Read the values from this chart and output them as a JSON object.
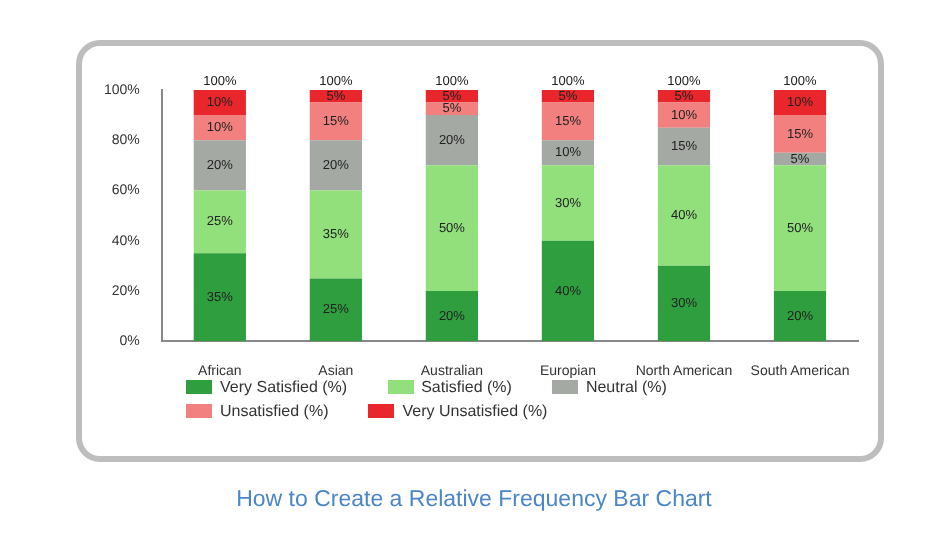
{
  "chart_data": {
    "type": "bar",
    "stacked": true,
    "categories": [
      "African",
      "Asian",
      "Australian",
      "Europian",
      "North American",
      "South American"
    ],
    "series": [
      {
        "name": "Very Satisfied (%)",
        "color": "#2f9e3f",
        "values": [
          35,
          25,
          20,
          40,
          30,
          20
        ],
        "value_labels": [
          "35%",
          "25%",
          "20%",
          "40%",
          "30%",
          "20%"
        ]
      },
      {
        "name": "Satisfied (%)",
        "color": "#92e07c",
        "values": [
          25,
          35,
          50,
          30,
          40,
          50
        ],
        "value_labels": [
          "25%",
          "35%",
          "50%",
          "30%",
          "40%",
          "50%"
        ]
      },
      {
        "name": "Neutral (%)",
        "color": "#a4a9a4",
        "values": [
          20,
          20,
          20,
          10,
          15,
          5
        ],
        "value_labels": [
          "20%",
          "20%",
          "20%",
          "10%",
          "15%",
          "5%"
        ]
      },
      {
        "name": "Unsatisfied (%)",
        "color": "#f2807f",
        "values": [
          10,
          15,
          5,
          15,
          10,
          15
        ],
        "value_labels": [
          "10%",
          "15%",
          "5%",
          "15%",
          "10%",
          "15%"
        ]
      },
      {
        "name": "Very Unsatisfied (%)",
        "color": "#e8262b",
        "values": [
          10,
          5,
          5,
          5,
          5,
          10
        ],
        "value_labels": [
          "10%",
          "5%",
          "5%",
          "5%",
          "5%",
          "10%"
        ]
      }
    ],
    "totals": [
      "100%",
      "100%",
      "100%",
      "100%",
      "100%",
      "100%"
    ],
    "ylim": [
      0,
      100
    ],
    "yticks": [
      {
        "value": 0,
        "label": "0%"
      },
      {
        "value": 20,
        "label": "20%"
      },
      {
        "value": 40,
        "label": "40%"
      },
      {
        "value": 60,
        "label": "60%"
      },
      {
        "value": 80,
        "label": "80%"
      },
      {
        "value": 100,
        "label": "100%"
      }
    ],
    "grid": false,
    "legend": "bottom",
    "annotations": [
      "How to Create a Relative Frequency Bar Chart"
    ]
  }
}
